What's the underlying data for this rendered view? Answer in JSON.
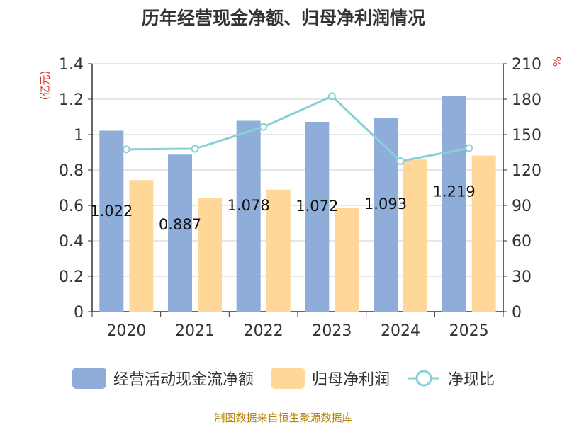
{
  "title": "历年经营现金净额、归母净利润情况",
  "left_unit": "(亿元)",
  "right_unit": "%",
  "source": "制图数据来自恒生聚源数据库",
  "colors": {
    "cash": "#8eadd9",
    "profit": "#ffd899",
    "ratio": "#88d0d8",
    "text": "#333333",
    "grid": "#cccccc"
  },
  "chart_data": {
    "type": "bar",
    "title": "历年经营现金净额、归母净利润情况",
    "categories": [
      "2020",
      "2021",
      "2022",
      "2023",
      "2024",
      "2025"
    ],
    "series": [
      {
        "name": "经营活动现金流净额",
        "type": "bar",
        "axis": "left",
        "values": [
          1.022,
          0.887,
          1.078,
          1.072,
          1.093,
          1.219
        ],
        "labels": [
          "1.022",
          "0.887",
          "1.078",
          "1.072",
          "1.093",
          "1.219"
        ]
      },
      {
        "name": "归母净利润",
        "type": "bar",
        "axis": "left",
        "values": [
          0.743,
          0.643,
          0.689,
          0.588,
          0.859,
          0.882
        ]
      },
      {
        "name": "净现比",
        "type": "line",
        "axis": "right",
        "values": [
          137.5,
          138.0,
          156.5,
          182.5,
          127.5,
          138.5
        ]
      }
    ],
    "y_left": {
      "min": 0,
      "max": 1.4,
      "ticks": [
        "0",
        "0.2",
        "0.4",
        "0.6",
        "0.8",
        "1",
        "1.2",
        "1.4"
      ]
    },
    "y_right": {
      "min": 0,
      "max": 210,
      "ticks": [
        "0",
        "30",
        "60",
        "90",
        "120",
        "150",
        "180",
        "210"
      ]
    },
    "legend_position": "bottom",
    "grid": true
  },
  "legend": [
    {
      "label": "经营活动现金流净额",
      "icon": "bar-swatch"
    },
    {
      "label": "归母净利润",
      "icon": "bar-swatch"
    },
    {
      "label": "净现比",
      "icon": "line-circle-marker"
    }
  ]
}
